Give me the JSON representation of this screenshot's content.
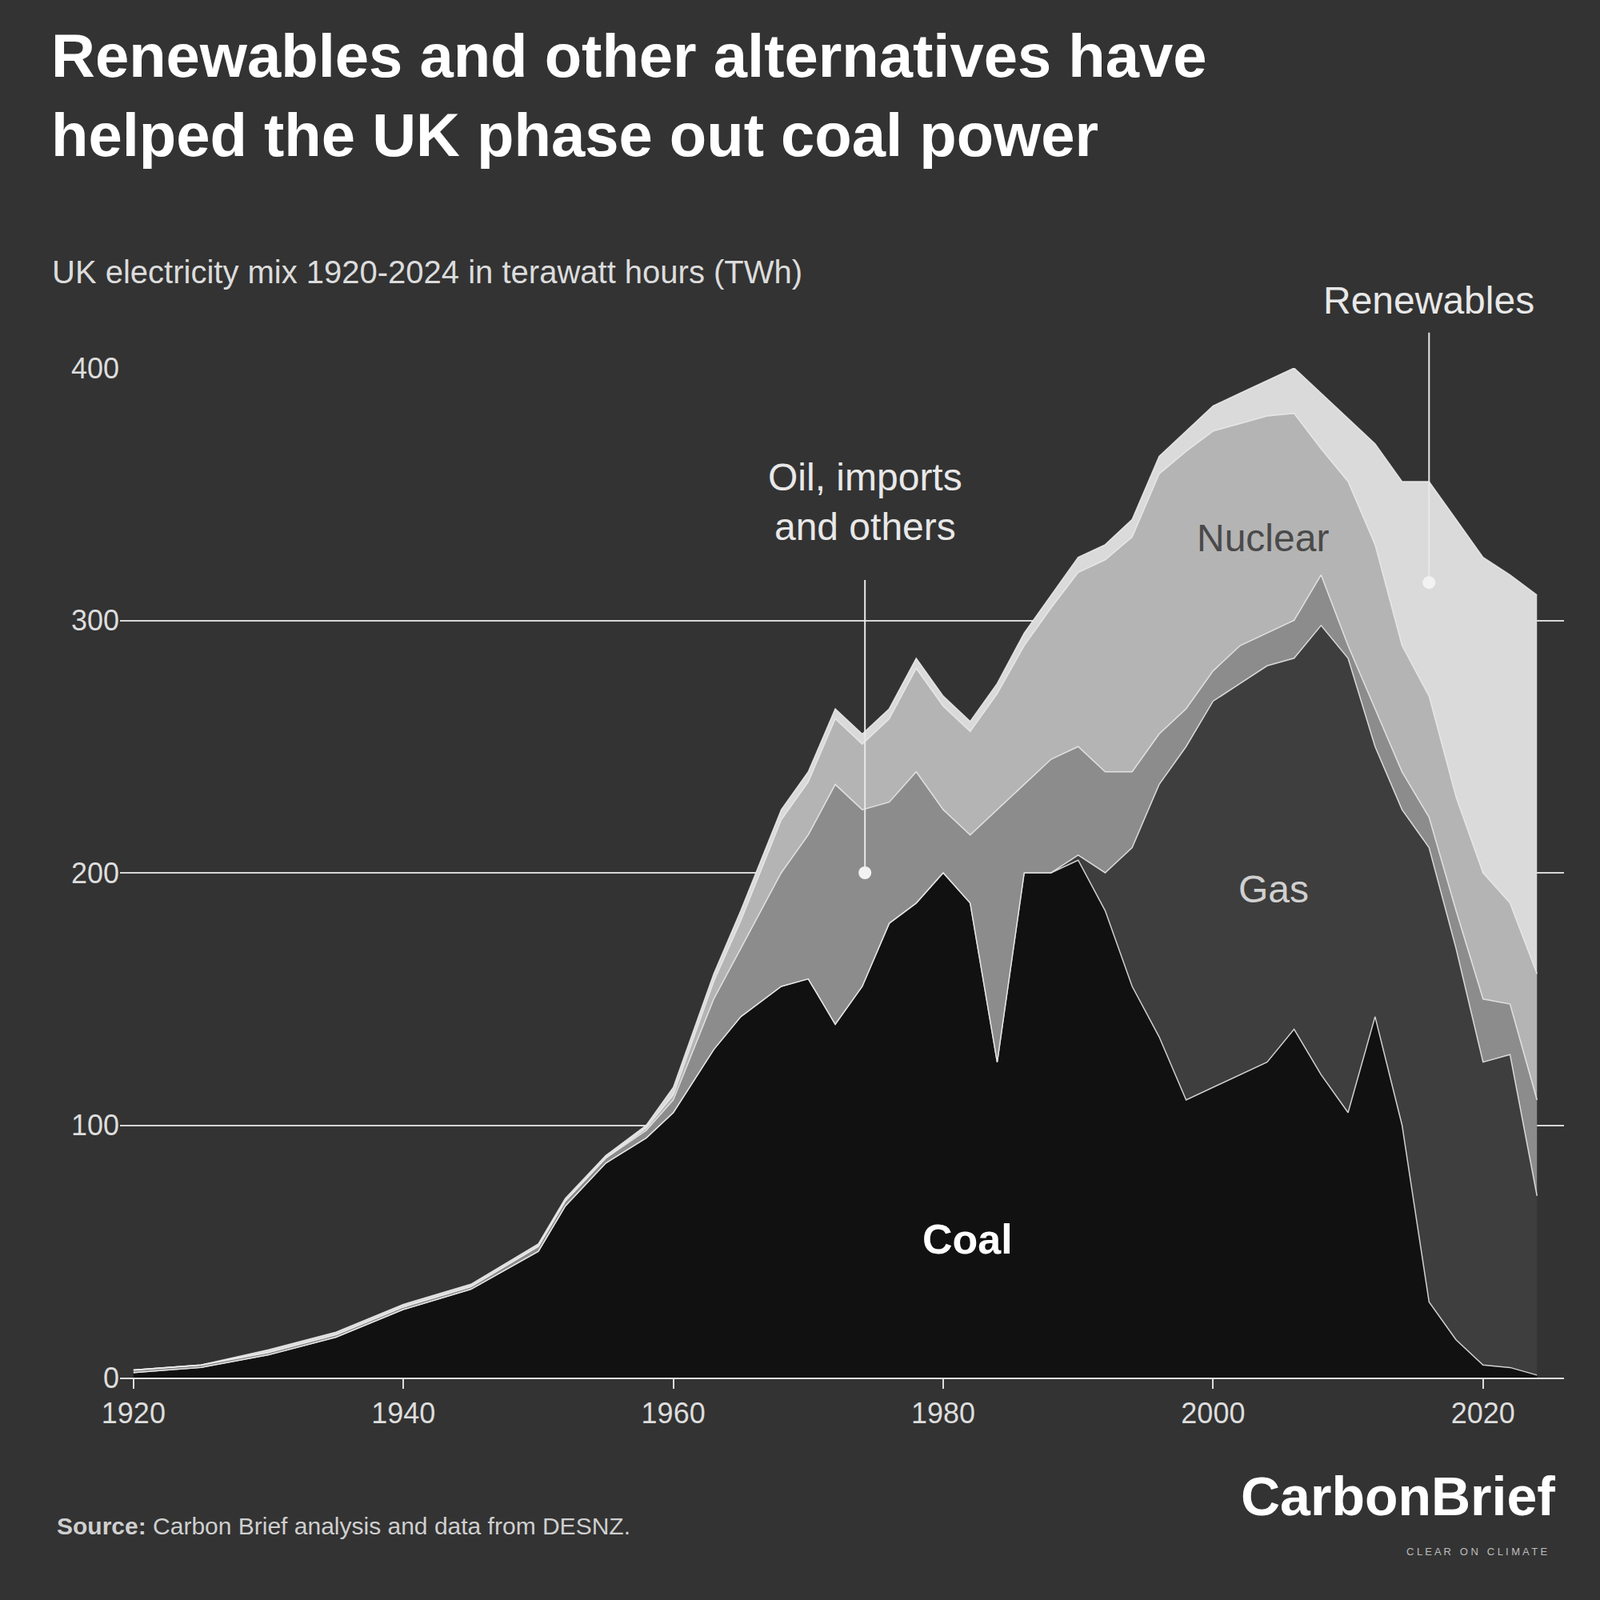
{
  "chart_data": {
    "type": "area",
    "title": "Renewables and other alternatives have helped the UK phase out coal power",
    "subtitle": "UK electricity mix 1920-2024 in terawatt hours (TWh)",
    "stacked": true,
    "grid": true,
    "x": [
      1920,
      1925,
      1930,
      1935,
      1940,
      1945,
      1950,
      1952,
      1955,
      1958,
      1960,
      1963,
      1965,
      1968,
      1970,
      1972,
      1974,
      1976,
      1978,
      1980,
      1982,
      1984,
      1986,
      1988,
      1990,
      1992,
      1994,
      1996,
      1998,
      2000,
      2002,
      2004,
      2006,
      2008,
      2010,
      2012,
      2014,
      2016,
      2018,
      2020,
      2022,
      2024
    ],
    "series": [
      {
        "name": "Coal",
        "color": "#111111",
        "values": [
          2,
          4,
          9,
          16,
          27,
          35,
          50,
          68,
          85,
          95,
          105,
          130,
          143,
          155,
          158,
          140,
          155,
          180,
          188,
          200,
          188,
          125,
          200,
          200,
          205,
          185,
          155,
          135,
          110,
          115,
          120,
          125,
          138,
          120,
          105,
          143,
          100,
          30,
          15,
          5,
          4,
          1
        ]
      },
      {
        "name": "Gas",
        "color": "#3e3e3e",
        "values": [
          0,
          0,
          0,
          0,
          0,
          0,
          0,
          0,
          0,
          0,
          0,
          0,
          0,
          0,
          0,
          0,
          0,
          0,
          0,
          0,
          0,
          0,
          0,
          0,
          2,
          15,
          55,
          100,
          140,
          153,
          155,
          157,
          147,
          178,
          180,
          107,
          125,
          180,
          155,
          120,
          124,
          71
        ]
      },
      {
        "name": "Oil, imports and others",
        "color": "#8c8c8c",
        "values": [
          1,
          1,
          1,
          1,
          1,
          1,
          2,
          2,
          2,
          3,
          5,
          20,
          27,
          45,
          57,
          95,
          70,
          48,
          52,
          25,
          27,
          100,
          35,
          45,
          43,
          40,
          30,
          20,
          15,
          12,
          15,
          13,
          15,
          20,
          5,
          15,
          15,
          12,
          15,
          25,
          20,
          38
        ]
      },
      {
        "name": "Nuclear",
        "color": "#b4b4b4",
        "values": [
          0,
          0,
          0,
          0,
          0,
          0,
          0,
          0,
          0,
          1,
          2,
          7,
          11,
          21,
          21,
          26,
          26,
          33,
          41,
          41,
          41,
          46,
          55,
          60,
          69,
          84,
          93,
          103,
          102,
          95,
          88,
          86,
          82,
          50,
          65,
          65,
          50,
          48,
          45,
          50,
          40,
          50
        ]
      },
      {
        "name": "Renewables",
        "color": "#dadada",
        "values": [
          0,
          0,
          1,
          1,
          1,
          1,
          1,
          1,
          1,
          1,
          3,
          3,
          4,
          4,
          4,
          4,
          4,
          4,
          4,
          4,
          4,
          4,
          5,
          5,
          6,
          6,
          7,
          7,
          8,
          10,
          12,
          14,
          18,
          22,
          25,
          40,
          65,
          85,
          110,
          125,
          130,
          150
        ]
      }
    ],
    "xlim": [
      1919,
      2026
    ],
    "xticks": [
      1920,
      1940,
      1960,
      1980,
      2000,
      2020
    ],
    "ylim": [
      0,
      400
    ],
    "yticks": [
      0,
      100,
      200,
      300,
      400
    ]
  },
  "source": {
    "label": "Source:",
    "text": "Carbon Brief analysis and data from DESNZ."
  },
  "logo": {
    "text": "CarbonBrief",
    "tagline": "CLEAR ON CLIMATE"
  }
}
